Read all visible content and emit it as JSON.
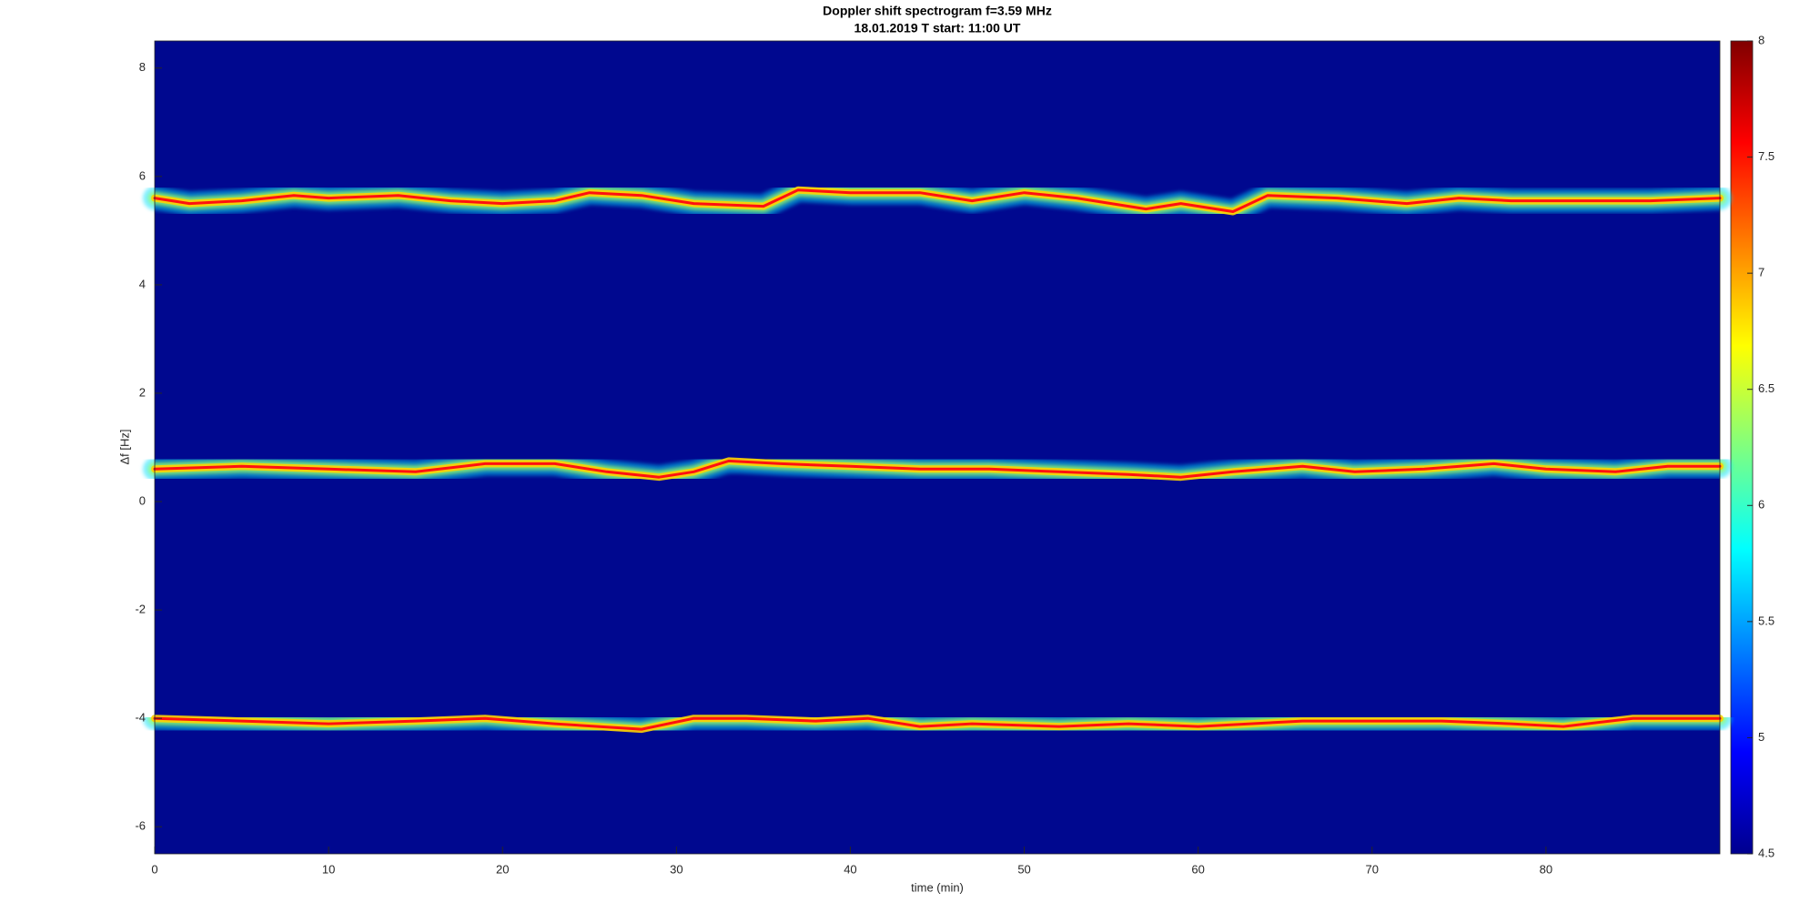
{
  "chart_data": {
    "type": "spectrogram",
    "title": "Doppler shift spectrogram f=3.59 MHz",
    "subtitle": "18.01.2019   T start: 11:00 UT",
    "xlabel": "time (min)",
    "ylabel": "Δf [Hz]",
    "xlim": [
      0,
      90
    ],
    "xticks": [
      0,
      10,
      20,
      30,
      40,
      50,
      60,
      70,
      80
    ],
    "ylim": [
      -6.5,
      8.5
    ],
    "yticks": [
      -6,
      -4,
      -2,
      0,
      2,
      4,
      6,
      8
    ],
    "colormap": "jet",
    "clim": [
      4.5,
      8
    ],
    "cticks": [
      4.5,
      5,
      5.5,
      6,
      6.5,
      7,
      7.5,
      8
    ],
    "series": [
      {
        "x": [
          0,
          2,
          5,
          8,
          10,
          14,
          17,
          20,
          23,
          25,
          28,
          31,
          35,
          37,
          40,
          44,
          47,
          50,
          53,
          57,
          59,
          62,
          64,
          68,
          72,
          75,
          78,
          82,
          86,
          90
        ],
        "values": [
          5.6,
          5.5,
          5.55,
          5.65,
          5.6,
          5.65,
          5.55,
          5.5,
          5.55,
          5.7,
          5.65,
          5.5,
          5.45,
          5.75,
          5.7,
          5.7,
          5.55,
          5.7,
          5.6,
          5.4,
          5.5,
          5.35,
          5.65,
          5.6,
          5.5,
          5.6,
          5.55,
          5.55,
          5.55,
          5.6
        ]
      },
      {
        "x": [
          0,
          5,
          10,
          15,
          19,
          23,
          26,
          29,
          31,
          33,
          36,
          40,
          44,
          48,
          52,
          56,
          59,
          62,
          66,
          69,
          73,
          77,
          80,
          84,
          87,
          90
        ],
        "values": [
          0.6,
          0.65,
          0.6,
          0.55,
          0.7,
          0.7,
          0.55,
          0.45,
          0.55,
          0.75,
          0.7,
          0.65,
          0.6,
          0.6,
          0.55,
          0.5,
          0.45,
          0.55,
          0.65,
          0.55,
          0.6,
          0.7,
          0.6,
          0.55,
          0.65,
          0.65
        ]
      },
      {
        "x": [
          0,
          5,
          10,
          15,
          19,
          23,
          28,
          31,
          34,
          38,
          41,
          44,
          47,
          52,
          56,
          60,
          63,
          66,
          70,
          74,
          78,
          81,
          85,
          90
        ],
        "values": [
          -4.0,
          -4.05,
          -4.1,
          -4.05,
          -4.0,
          -4.1,
          -4.2,
          -4.0,
          -4.0,
          -4.05,
          -4.0,
          -4.15,
          -4.1,
          -4.15,
          -4.1,
          -4.15,
          -4.1,
          -4.05,
          -4.05,
          -4.05,
          -4.1,
          -4.15,
          -4.0,
          -4.0
        ]
      }
    ]
  }
}
